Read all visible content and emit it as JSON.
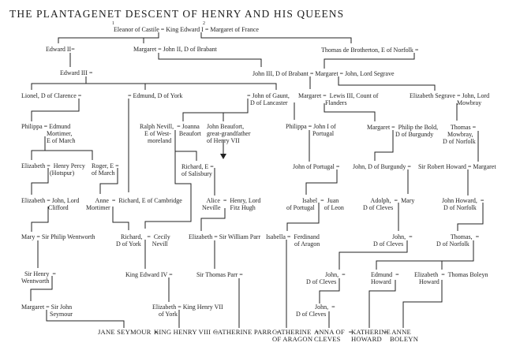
{
  "title": "THE PLANTAGENET DESCENT OF HENRY AND HIS QUEENS",
  "marks": [
    "1",
    "2"
  ],
  "nodes": [
    {
      "lines": [
        "Eleanor of Castile = King Edward I = Margaret of France"
      ]
    },
    {
      "lines": [
        "Edward II="
      ]
    },
    {
      "lines": [
        "Margaret = John II, D of Brabant"
      ]
    },
    {
      "lines": [
        "Thomas de Brotherton, E of Norfolk ="
      ]
    },
    {
      "lines": [
        "Edward III ="
      ]
    },
    {
      "lines": [
        "John III, D of Brabant = Margaret = John, Lord Segrave"
      ]
    },
    {
      "lines": [
        "Lionel, D of Clarence ="
      ]
    },
    {
      "lines": [
        "= Edmund, D of York"
      ]
    },
    {
      "lines": [
        "= John of Gaunt,",
        "  D of Lancaster"
      ]
    },
    {
      "lines": [
        "Margaret =  Lewis III, Count of",
        "                 Flanders"
      ]
    },
    {
      "lines": [
        "Elizabeth Segrave = John, Lord",
        "                              Mowbray"
      ]
    },
    {
      "lines": [
        "Philippa = Edmund",
        "                Mortimer,",
        "                E of March"
      ]
    },
    {
      "lines": [
        "Ralph Nevill,  = Joanna",
        "   E of West-     Beaufort",
        "     moreland"
      ]
    },
    {
      "lines": [
        "John Beaufort,",
        "great-grandfather",
        "of Henry VII"
      ]
    },
    {
      "lines": [
        "Philippa = John I of",
        "                 Portugal"
      ]
    },
    {
      "lines": [
        "Margaret =  Philip the Bold,",
        "                  D of Burgundy"
      ]
    },
    {
      "lines": [
        "     Thomas =",
        "   Mowbray,",
        "D of Norfolk"
      ]
    },
    {
      "lines": [
        "Elizabeth =  Henry Percy",
        "                  (Hotspur)"
      ]
    },
    {
      "lines": [
        "Roger, E =",
        "of March"
      ]
    },
    {
      "lines": [
        "Richard, E =",
        "of Salisbury"
      ]
    },
    {
      "lines": [
        "John of Portugal ="
      ]
    },
    {
      "lines": [
        "John, D of Burgundy ="
      ]
    },
    {
      "lines": [
        "Sir Robert Howard = Margaret"
      ]
    },
    {
      "lines": [
        "Elizabeth = John, Lord",
        "                 Clifford"
      ]
    },
    {
      "lines": [
        "      Anne  =  Richard, E of Cambridge",
        "Mortimer"
      ]
    },
    {
      "lines": [
        "   Alice  =  Henry, Lord",
        "Neville      Fitz Hugh"
      ]
    },
    {
      "lines": [
        "          Isabel  =  Juan",
        "of Portugal      of Leon"
      ]
    },
    {
      "lines": [
        "     Adolph,  =  Mary",
        "D of Cleves"
      ]
    },
    {
      "lines": [
        "John Howard,  =",
        " D of Norfolk"
      ]
    },
    {
      "lines": [
        "Mary = Sir Philip Wentworth"
      ]
    },
    {
      "lines": [
        "   Richard,   =  Cecily",
        "D of York       Nevill"
      ]
    },
    {
      "lines": [
        "Elizabeth = Sir William Parr"
      ]
    },
    {
      "lines": [
        "Isabella =  Ferdinand",
        "                  of Aragon"
      ]
    },
    {
      "lines": [
        "            John,  =",
        "D of Cleves"
      ]
    },
    {
      "lines": [
        "         Thomas,  =",
        "D of Norfolk"
      ]
    },
    {
      "lines": [
        "  Sir Henry  =",
        "Wentworth"
      ]
    },
    {
      "lines": [
        "King Edward IV ="
      ]
    },
    {
      "lines": [
        "Sir Thomas Parr ="
      ]
    },
    {
      "lines": [
        "            John,  =",
        "D of Cleves"
      ]
    },
    {
      "lines": [
        "Edmund  =",
        "Howard"
      ]
    },
    {
      "lines": [
        "Elizabeth  =  Thomas Boleyn",
        "   Howard"
      ]
    },
    {
      "lines": [
        "Margaret = Sir John",
        "                  Seymour"
      ]
    },
    {
      "lines": [
        "Elizabeth = King Henry VII",
        "    of York"
      ]
    },
    {
      "lines": [
        "            John,  =",
        "D of Cleves"
      ]
    }
  ],
  "queens": [
    {
      "lines": [
        "JANE SEYMOUR  ="
      ]
    },
    {
      "lines": [
        "KING HENRY VIII  ="
      ]
    },
    {
      "lines": [
        "CATHERINE PARR  ="
      ]
    },
    {
      "lines": [
        "CATHERINE  =",
        "OF ARAGON"
      ]
    },
    {
      "lines": [
        "ANNA OF  =",
        "CLEVES"
      ]
    },
    {
      "lines": [
        "KATHERINE",
        "HOWARD"
      ]
    },
    {
      "lines": [
        "=  ANNE",
        "   BOLEYN"
      ]
    }
  ],
  "arrow_icon": "down-arrow"
}
